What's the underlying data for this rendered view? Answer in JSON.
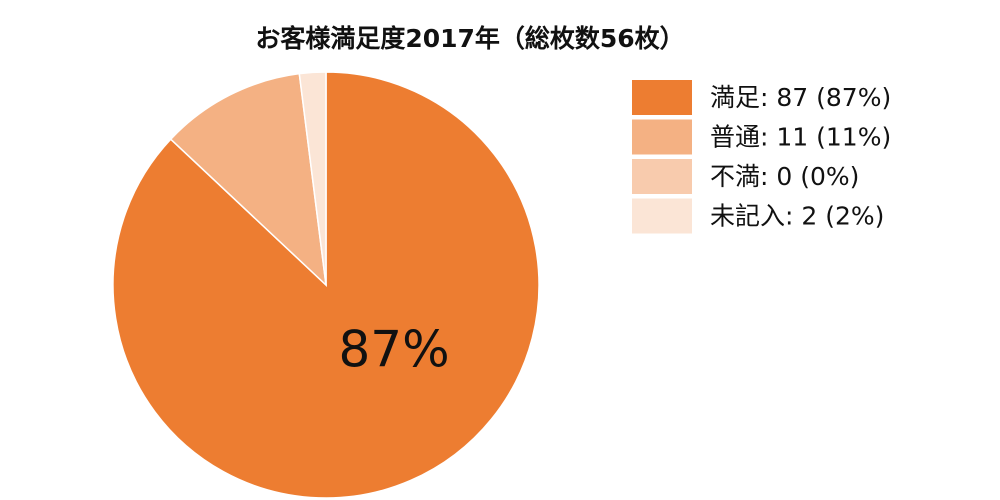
{
  "chart_data": {
    "type": "pie",
    "title": "お客様満足度2017年（総枚数56枚）",
    "categories": [
      "満足: 87 (87%)",
      "普通: 11 (11%)",
      "不満: 0 (0%)",
      "未記入: 2 (2%)"
    ],
    "values": [
      87,
      11,
      0,
      2
    ],
    "value_labels": [
      "87%",
      null,
      null,
      null
    ],
    "colors": [
      "#ed7d31",
      "#f4b183",
      "#f8cbad",
      "#fbe5d6"
    ],
    "legend": "right"
  }
}
